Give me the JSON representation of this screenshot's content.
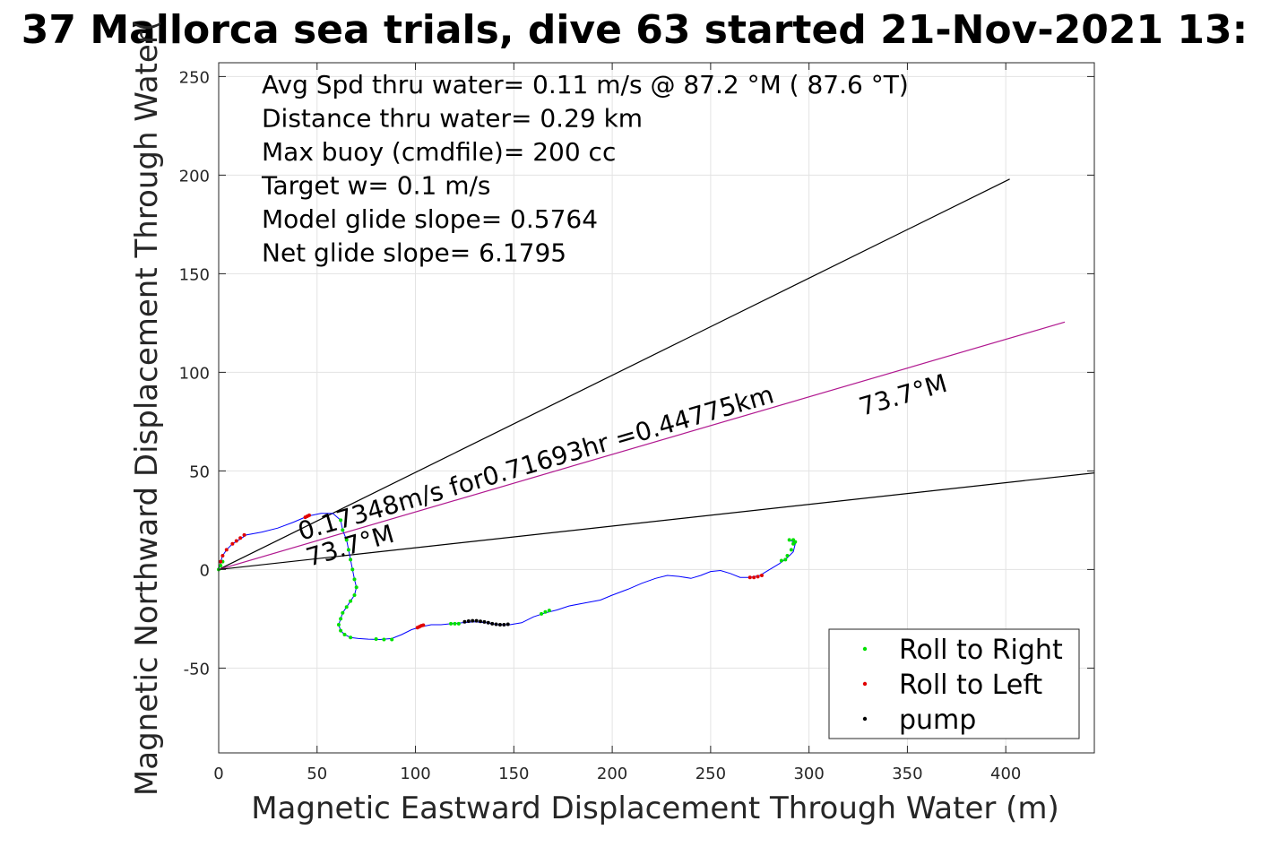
{
  "chart_data": {
    "type": "scatter",
    "title": "37 Mallorca sea trials, dive 63 started 21-Nov-2021 13:",
    "xlabel": "Magnetic Eastward Displacement Through Water (m)",
    "ylabel": "Magnetic Northward Displacement Through Water(",
    "xlim": [
      0,
      445
    ],
    "ylim": [
      -93,
      257
    ],
    "xticks": [
      0,
      50,
      100,
      150,
      200,
      250,
      300,
      350,
      400
    ],
    "yticks": [
      -50,
      0,
      50,
      100,
      150,
      200,
      250
    ],
    "grid": true,
    "legend_position": "bottom-right",
    "annotations": [
      "Avg Spd thru water=  0.11 m/s @  87.2 °M ( 87.6 °T)",
      "Distance thru water=  0.29 km",
      "Max buoy (cmdfile)= 200 cc",
      "Target w= 0.1 m/s",
      "Model glide slope= 0.5764",
      "Net glide slope= 6.1795"
    ],
    "ray_labels": {
      "speed": "0.17348m/s for0.71693hr =0.44775km",
      "heading_near": "73.7°M",
      "heading_far": "73.7°M"
    },
    "reference_lines": [
      {
        "name": "upper bound",
        "color": "#000000",
        "x": [
          0,
          402
        ],
        "y": [
          0,
          198
        ]
      },
      {
        "name": "heading",
        "color": "#b0178f",
        "x": [
          0,
          430
        ],
        "y": [
          0,
          125.5
        ]
      },
      {
        "name": "lower bound",
        "color": "#000000",
        "x": [
          0,
          445
        ],
        "y": [
          0,
          49
        ]
      }
    ],
    "track": {
      "color": "#0000ff",
      "x": [
        0,
        1,
        2,
        4,
        7,
        11,
        14,
        22,
        30,
        38,
        45,
        52,
        58,
        62,
        63,
        65,
        66,
        67,
        68,
        69,
        70,
        69,
        67,
        65,
        63,
        62,
        61,
        62,
        64,
        67,
        71,
        76,
        82,
        88,
        93,
        98,
        103,
        108,
        113,
        118,
        124,
        130,
        136,
        142,
        148,
        154,
        160,
        166,
        172,
        178,
        186,
        194,
        200,
        208,
        215,
        222,
        228,
        234,
        240,
        245,
        250,
        255,
        260,
        265,
        270,
        275,
        280,
        285,
        289,
        292,
        293,
        292,
        290
      ],
      "y": [
        0,
        4,
        7,
        10,
        13,
        15.5,
        17.5,
        19,
        21,
        24,
        27,
        28.5,
        28.5,
        25,
        20,
        15,
        10,
        5,
        0,
        -5,
        -9,
        -13,
        -16,
        -19,
        -22,
        -25,
        -28,
        -31,
        -33,
        -34.5,
        -35,
        -35.3,
        -35.5,
        -35,
        -33,
        -30.5,
        -29,
        -28,
        -28,
        -27.5,
        -27,
        -26.5,
        -27,
        -28,
        -28,
        -27,
        -24,
        -22,
        -20.5,
        -18.5,
        -17,
        -15.5,
        -13,
        -10,
        -7,
        -4.5,
        -3,
        -3.5,
        -4.5,
        -3,
        -1,
        -0.5,
        -2,
        -4,
        -4,
        -3,
        0,
        3,
        6,
        9,
        13,
        14,
        15
      ]
    },
    "series": [
      {
        "name": "Roll to Right",
        "color": "#00e000",
        "x": [
          0,
          1,
          2,
          62,
          63,
          65,
          66,
          67,
          68,
          69,
          70,
          69,
          67,
          65,
          63,
          62,
          61,
          62,
          64,
          67,
          80,
          84,
          88,
          118,
          120,
          122,
          164,
          166,
          168,
          286,
          288,
          289,
          291,
          292,
          293,
          292,
          290
        ],
        "y": [
          0,
          2,
          4,
          25,
          20,
          15,
          10,
          5,
          0,
          -5,
          -9,
          -13,
          -16,
          -19,
          -22,
          -25,
          -28,
          -31,
          -33,
          -34.5,
          -35.3,
          -35.5,
          -35.5,
          -27.5,
          -27.5,
          -27.5,
          -22.5,
          -21.5,
          -20.8,
          4.5,
          5,
          7,
          10,
          13,
          14,
          15,
          15
        ]
      },
      {
        "name": "Roll to Left",
        "color": "#e00000",
        "x": [
          1,
          2,
          4,
          7,
          9,
          11,
          13,
          44,
          45,
          46,
          101,
          102,
          103,
          104,
          270,
          272,
          274,
          276
        ],
        "y": [
          4,
          7,
          10,
          13,
          14.5,
          16,
          17.5,
          26.5,
          27,
          27.5,
          -29.5,
          -29,
          -28.5,
          -28.2,
          -4,
          -4,
          -3.6,
          -3
        ]
      },
      {
        "name": "pump",
        "color": "#000000",
        "x": [
          125,
          127,
          129,
          131,
          133,
          135,
          137,
          139,
          141,
          143,
          145,
          147
        ],
        "y": [
          -26.5,
          -26.2,
          -26,
          -26,
          -26.3,
          -26.6,
          -27,
          -27.5,
          -27.8,
          -28,
          -28,
          -27.8
        ]
      }
    ]
  }
}
